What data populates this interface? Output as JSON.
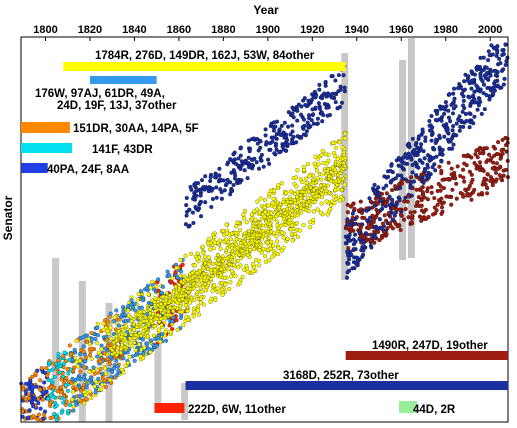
{
  "chart_data": {
    "type": "scatter",
    "title": "",
    "xlabel": "Year",
    "ylabel": "Senator",
    "xlim": [
      1789,
      2008
    ],
    "xticks": [
      1800,
      1820,
      1840,
      1860,
      1880,
      1900,
      1920,
      1940,
      1960,
      1980,
      2000
    ],
    "xaxis_position": "top",
    "grid": false,
    "colors": {
      "democrat": "#1a2fa0",
      "republican": "#9e1c10",
      "early_democrat": "#3399ee",
      "whig": "#ffff00",
      "federalist": "#00e0f0",
      "pro_administration": "#1f3fe0",
      "democratic_republican": "#ff8800",
      "civil_war_red": "#ff2200",
      "green_block": "#99ee99",
      "marker_edge": "#000000"
    },
    "highlight_periods": [
      {
        "start": 1803,
        "end": 1805
      },
      {
        "start": 1815,
        "end": 1817
      },
      {
        "start": 1827,
        "end": 1829
      },
      {
        "start": 1849,
        "end": 1851
      },
      {
        "start": 1861,
        "end": 1863
      },
      {
        "start": 1933,
        "end": 1935
      },
      {
        "start": 1959,
        "end": 1961
      },
      {
        "start": 1963,
        "end": 1965
      }
    ],
    "annotations": [
      {
        "label": "1784R, 276D, 149DR, 162J, 53W, 84other",
        "span": [
          1808,
          1935
        ],
        "color": "#ffff00"
      },
      {
        "label": "176W, 97AJ, 61DR, 49A, 24D, 19F, 13J, 37other",
        "span": [
          1820,
          1850
        ],
        "color": "#3399ee"
      },
      {
        "label": "151DR, 30AA, 14PA, 5F",
        "span": [
          1789,
          1811
        ],
        "color": "#ff8800"
      },
      {
        "label": "141F, 43DR",
        "span": [
          1789,
          1812
        ],
        "color": "#00e0f0"
      },
      {
        "label": "40PA, 24F, 8AA",
        "span": [
          1789,
          1801
        ],
        "color": "#1f3fe0"
      },
      {
        "label": "1490R, 247D, 19other",
        "span": [
          1935,
          2008
        ],
        "color": "#9e1c10"
      },
      {
        "label": "3168D, 252R, 73other",
        "span": [
          1863,
          2008
        ],
        "color": "#1a2fa0"
      },
      {
        "label": "222D, 6W, 11other",
        "span": [
          1849,
          1863
        ],
        "color": "#ff2200"
      },
      {
        "label": "44D, 2R",
        "span": [
          1959,
          1965
        ],
        "color": "#99ee99"
      }
    ]
  }
}
